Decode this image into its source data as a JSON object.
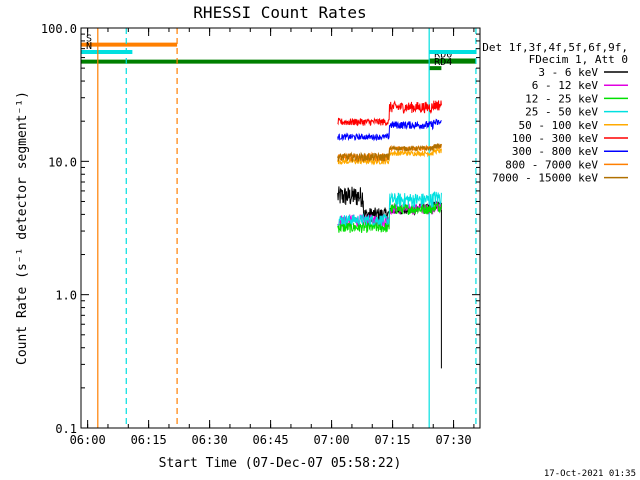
{
  "chart_data": {
    "type": "line",
    "title": "RHESSI Count Rates",
    "xlabel": "Start Time (07-Dec-07 05:58:22)",
    "ylabel": "Count Rate (s⁻¹ detector segment⁻¹)",
    "yscale": "log",
    "ylim": [
      0.1,
      100.0
    ],
    "xlim": [
      "05:58:22",
      "07:36:30"
    ],
    "xticks": [
      "06:00",
      "06:15",
      "06:30",
      "06:45",
      "07:00",
      "07:15",
      "07:30"
    ],
    "yticks": [
      "0.1",
      "1.0",
      "10.0",
      "100.0"
    ],
    "legend_title": [
      "Det 1f,3f,4f,5f,6f,9f,",
      "FDecim 1, Att 0"
    ],
    "legend_position": "right",
    "footer_date": "17-Oct-2021 01:35",
    "series": [
      {
        "name": "3 - 6 keV",
        "color": "#000000",
        "gap": [
          [
            4.5,
            6.5
          ],
          [
            3.5,
            4.5
          ]
        ],
        "after": [
          [
            4.0,
            4.5
          ],
          [
            4.2,
            4.8
          ]
        ]
      },
      {
        "name": "6 - 12 keV",
        "color": "#e000e0",
        "gap": [
          [
            3.2,
            4.0
          ]
        ],
        "after": [
          [
            4.0,
            4.8
          ]
        ]
      },
      {
        "name": "12 - 25 keV",
        "color": "#00e000",
        "gap": [
          [
            2.9,
            3.5
          ]
        ],
        "after": [
          [
            4.0,
            4.8
          ]
        ]
      },
      {
        "name": "25 - 50 keV",
        "color": "#00e0e0",
        "gap": [
          [
            3.3,
            4.0
          ]
        ],
        "after": [
          [
            4.5,
            5.8
          ]
        ]
      },
      {
        "name": "50 - 100 keV",
        "color": "#ffaa00",
        "gap": [
          [
            9.5,
            10.5
          ]
        ],
        "after": [
          [
            11.0,
            12.0
          ]
        ]
      },
      {
        "name": "100 - 300 keV",
        "color": "#ff0000",
        "gap": [
          [
            18.5,
            21.0
          ]
        ],
        "after": [
          [
            23.0,
            28.0
          ]
        ]
      },
      {
        "name": "300 - 800 keV",
        "color": "#0000ff",
        "gap": [
          [
            14.5,
            16.0
          ]
        ],
        "after": [
          [
            17.5,
            20.0
          ]
        ]
      },
      {
        "name": "800 - 7000 keV",
        "color": "#ff7f00",
        "gap": [
          [
            10.0,
            11.5
          ]
        ],
        "after": [
          [
            12.0,
            13.0
          ]
        ]
      },
      {
        "name": "7000 - 15000 keV",
        "color": "#b07000",
        "gap": [
          [
            10.0,
            11.5
          ]
        ],
        "after": [
          [
            12.0,
            13.0
          ]
        ]
      }
    ],
    "data_start": "07:01:30",
    "data_end": "07:27:00",
    "final_drop_time": "07:27:00",
    "final_drop_value": 0.28,
    "flag_segments": [
      {
        "label": "S",
        "color": "#ff7f00",
        "start": "05:58:22",
        "end": "06:22:00",
        "y": 75
      },
      {
        "label": "N",
        "color": "#00e0e0",
        "start": "05:58:22",
        "end": "06:11:00",
        "y": 66
      },
      {
        "label": "",
        "color": "#007f00",
        "start": "05:58:22",
        "end": "07:35:30",
        "y": 56
      },
      {
        "label": "RD0",
        "color": "#007f00",
        "start": "07:24:00",
        "end": "07:35:30",
        "y": 57
      },
      {
        "label": "RD4",
        "color": "#007f00",
        "start": "07:24:00",
        "end": "07:27:00",
        "y": 50
      },
      {
        "label": "",
        "color": "#00e0e0",
        "start": "07:24:00",
        "end": "07:35:30",
        "y": 66
      }
    ],
    "vlines": [
      {
        "time": "06:02:30",
        "color": "#ff7f00",
        "style": "solid"
      },
      {
        "time": "06:09:30",
        "color": "#00e0e0",
        "style": "dashed"
      },
      {
        "time": "06:22:00",
        "color": "#ff7f00",
        "style": "dashed"
      },
      {
        "time": "07:24:00",
        "color": "#00e0e0",
        "style": "solid"
      },
      {
        "time": "07:35:30",
        "color": "#00e0e0",
        "style": "dashed"
      }
    ]
  }
}
